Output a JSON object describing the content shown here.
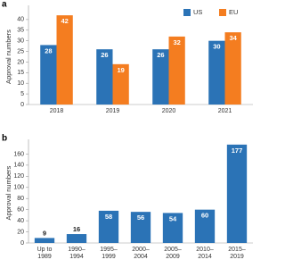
{
  "chart_data": [
    {
      "type": "grouped-bar",
      "panel_label": "a",
      "y_label": "Approval numbers",
      "categories": [
        "2018",
        "2019",
        "2020",
        "2021"
      ],
      "series": [
        {
          "name": "US",
          "color": "#2b73b6",
          "values": [
            28,
            26,
            26,
            30
          ]
        },
        {
          "name": "EU",
          "color": "#f47d20",
          "values": [
            42,
            19,
            32,
            34
          ]
        }
      ],
      "ylim": [
        0,
        45
      ],
      "yticks": [
        0,
        5,
        10,
        15,
        20,
        25,
        30,
        35,
        40
      ],
      "legend": "top-right"
    },
    {
      "type": "bar",
      "panel_label": "b",
      "y_label": "Approval numbers",
      "categories": [
        "Up to 1989",
        "1990–1994",
        "1995–1999",
        "2000–2004",
        "2005–2009",
        "2010–2014",
        "2015–2019"
      ],
      "values": [
        9,
        16,
        58,
        56,
        54,
        60,
        177
      ],
      "color": "#2b73b6",
      "ylim": [
        0,
        180
      ],
      "yticks": [
        0,
        20,
        40,
        60,
        80,
        100,
        120,
        140,
        160
      ]
    }
  ]
}
